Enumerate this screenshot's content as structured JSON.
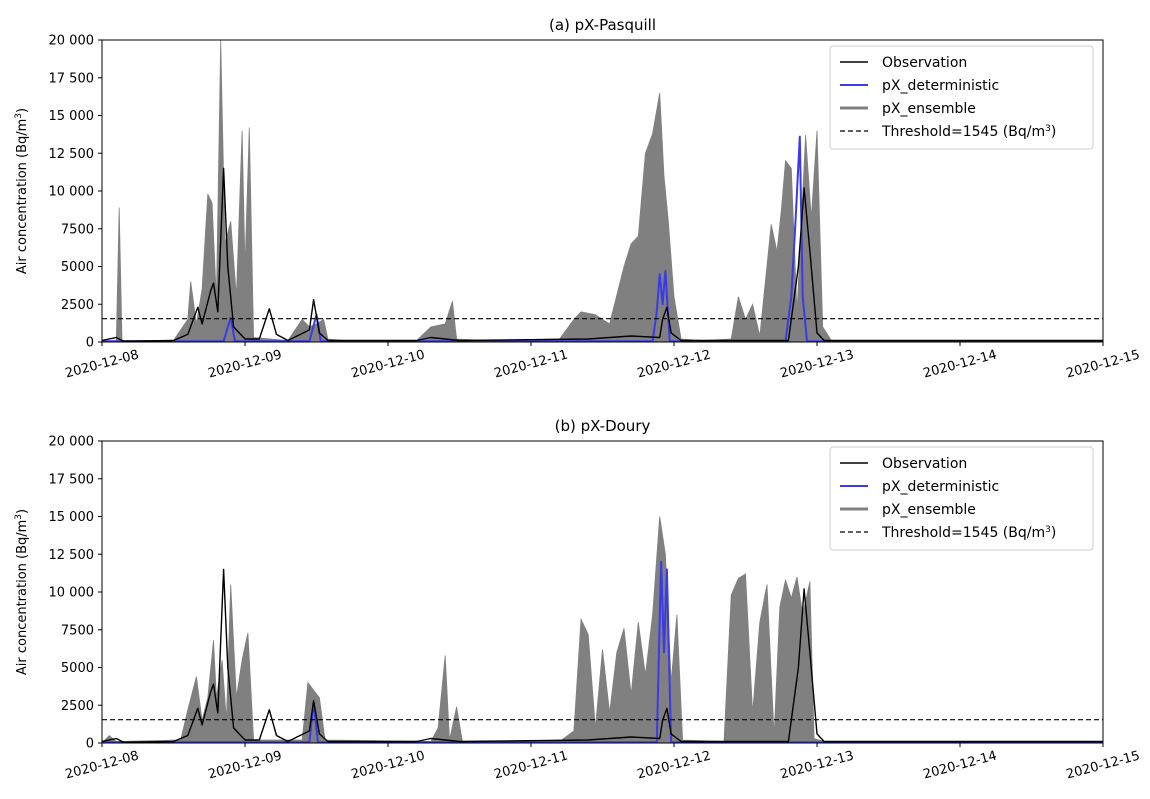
{
  "chart_data": [
    {
      "type": "area",
      "title": "(a) pX-Pasquill",
      "ylabel": "Air concentration (Bq/m³)",
      "xlim": [
        "2020-12-08",
        "2020-12-15"
      ],
      "ylim": [
        0,
        20000
      ],
      "x_ticks": [
        "2020-12-08",
        "2020-12-09",
        "2020-12-10",
        "2020-12-11",
        "2020-12-12",
        "2020-12-13",
        "2020-12-14",
        "2020-12-15"
      ],
      "y_ticks": [
        0,
        2500,
        5000,
        7500,
        10000,
        12500,
        15000,
        17500,
        20000
      ],
      "y_tick_labels": [
        "0",
        "2500",
        "5000",
        "7500",
        "10 000",
        "12 500",
        "15 000",
        "17 500",
        "20 000"
      ],
      "grid": false,
      "legend": "top-right",
      "threshold": {
        "name": "Threshold=1545 (Bq/m³)",
        "value": 1545,
        "color": "#000000",
        "style": "dashed"
      },
      "series": [
        {
          "name": "pX_ensemble",
          "color": "#808080",
          "style": "fill",
          "points": [
            [
              0,
              0
            ],
            [
              0.1,
              100
            ],
            [
              0.12,
              8900
            ],
            [
              0.14,
              100
            ],
            [
              0.5,
              100
            ],
            [
              0.6,
              1500
            ],
            [
              0.62,
              4000
            ],
            [
              0.66,
              1200
            ],
            [
              0.7,
              3500
            ],
            [
              0.74,
              9800
            ],
            [
              0.77,
              9200
            ],
            [
              0.8,
              2800
            ],
            [
              0.83,
              20000
            ],
            [
              0.86,
              6500
            ],
            [
              0.9,
              8000
            ],
            [
              0.94,
              3000
            ],
            [
              0.98,
              14000
            ],
            [
              1.0,
              5000
            ],
            [
              1.03,
              14200
            ],
            [
              1.06,
              300
            ],
            [
              1.3,
              100
            ],
            [
              1.4,
              1500
            ],
            [
              1.45,
              1000
            ],
            [
              1.5,
              1200
            ],
            [
              1.55,
              1500
            ],
            [
              1.58,
              200
            ],
            [
              1.7,
              100
            ],
            [
              2.2,
              100
            ],
            [
              2.3,
              1000
            ],
            [
              2.35,
              1100
            ],
            [
              2.4,
              1200
            ],
            [
              2.45,
              2700
            ],
            [
              2.48,
              200
            ],
            [
              2.7,
              100
            ],
            [
              3.2,
              200
            ],
            [
              3.3,
              1500
            ],
            [
              3.35,
              2000
            ],
            [
              3.45,
              1800
            ],
            [
              3.55,
              1200
            ],
            [
              3.65,
              5000
            ],
            [
              3.7,
              6500
            ],
            [
              3.75,
              7000
            ],
            [
              3.8,
              12500
            ],
            [
              3.85,
              13800
            ],
            [
              3.9,
              16500
            ],
            [
              3.93,
              11000
            ],
            [
              3.96,
              8000
            ],
            [
              4.0,
              3000
            ],
            [
              4.05,
              200
            ],
            [
              4.2,
              100
            ],
            [
              4.4,
              200
            ],
            [
              4.45,
              3000
            ],
            [
              4.5,
              1500
            ],
            [
              4.55,
              2500
            ],
            [
              4.6,
              400
            ],
            [
              4.68,
              7800
            ],
            [
              4.72,
              6000
            ],
            [
              4.75,
              8700
            ],
            [
              4.78,
              12000
            ],
            [
              4.82,
              11500
            ],
            [
              4.86,
              2000
            ],
            [
              4.92,
              13700
            ],
            [
              4.96,
              8200
            ],
            [
              5.0,
              14000
            ],
            [
              5.04,
              1000
            ],
            [
              5.1,
              100
            ],
            [
              7.0,
              100
            ]
          ]
        },
        {
          "name": "pX_deterministic",
          "color": "#3a3ae8",
          "style": "line",
          "points": [
            [
              0,
              50
            ],
            [
              0.85,
              50
            ],
            [
              0.9,
              1600
            ],
            [
              0.93,
              50
            ],
            [
              1.45,
              50
            ],
            [
              1.5,
              1800
            ],
            [
              1.53,
              50
            ],
            [
              3.85,
              50
            ],
            [
              3.88,
              2000
            ],
            [
              3.9,
              4500
            ],
            [
              3.92,
              2500
            ],
            [
              3.94,
              4700
            ],
            [
              3.97,
              50
            ],
            [
              4.78,
              50
            ],
            [
              4.82,
              3000
            ],
            [
              4.85,
              8000
            ],
            [
              4.88,
              13600
            ],
            [
              4.9,
              3000
            ],
            [
              4.93,
              50
            ],
            [
              7.0,
              50
            ]
          ]
        },
        {
          "name": "Observation",
          "color": "#000000",
          "style": "line",
          "points": [
            [
              0,
              100
            ],
            [
              0.1,
              300
            ],
            [
              0.15,
              50
            ],
            [
              0.5,
              100
            ],
            [
              0.6,
              500
            ],
            [
              0.67,
              2300
            ],
            [
              0.7,
              1200
            ],
            [
              0.76,
              3400
            ],
            [
              0.78,
              3900
            ],
            [
              0.81,
              2000
            ],
            [
              0.85,
              11500
            ],
            [
              0.88,
              5000
            ],
            [
              0.92,
              1000
            ],
            [
              1.0,
              200
            ],
            [
              1.1,
              200
            ],
            [
              1.17,
              2200
            ],
            [
              1.22,
              500
            ],
            [
              1.3,
              100
            ],
            [
              1.45,
              800
            ],
            [
              1.48,
              2800
            ],
            [
              1.52,
              600
            ],
            [
              1.58,
              100
            ],
            [
              2.2,
              100
            ],
            [
              2.3,
              300
            ],
            [
              2.5,
              100
            ],
            [
              3.4,
              200
            ],
            [
              3.7,
              400
            ],
            [
              3.9,
              300
            ],
            [
              3.92,
              1500
            ],
            [
              3.95,
              2300
            ],
            [
              3.98,
              600
            ],
            [
              4.05,
              100
            ],
            [
              4.8,
              100
            ],
            [
              4.87,
              5000
            ],
            [
              4.91,
              10200
            ],
            [
              4.95,
              6000
            ],
            [
              5.0,
              600
            ],
            [
              5.05,
              100
            ],
            [
              7.0,
              100
            ]
          ]
        }
      ]
    },
    {
      "type": "area",
      "title": "(b) pX-Doury",
      "ylabel": "Air concentration (Bq/m³)",
      "xlim": [
        "2020-12-08",
        "2020-12-15"
      ],
      "ylim": [
        0,
        20000
      ],
      "x_ticks": [
        "2020-12-08",
        "2020-12-09",
        "2020-12-10",
        "2020-12-11",
        "2020-12-12",
        "2020-12-13",
        "2020-12-14",
        "2020-12-15"
      ],
      "y_ticks": [
        0,
        2500,
        5000,
        7500,
        10000,
        12500,
        15000,
        17500,
        20000
      ],
      "y_tick_labels": [
        "0",
        "2500",
        "5000",
        "7500",
        "10 000",
        "12 500",
        "15 000",
        "17 500",
        "20 000"
      ],
      "grid": false,
      "legend": "top-right",
      "threshold": {
        "name": "Threshold=1545 (Bq/m³)",
        "value": 1545,
        "color": "#000000",
        "style": "dashed"
      },
      "series": [
        {
          "name": "pX_ensemble",
          "color": "#808080",
          "style": "fill",
          "points": [
            [
              0,
              0
            ],
            [
              0.05,
              500
            ],
            [
              0.1,
              100
            ],
            [
              0.55,
              200
            ],
            [
              0.6,
              2200
            ],
            [
              0.66,
              4400
            ],
            [
              0.7,
              1500
            ],
            [
              0.74,
              3000
            ],
            [
              0.78,
              6800
            ],
            [
              0.8,
              3000
            ],
            [
              0.84,
              5500
            ],
            [
              0.87,
              1500
            ],
            [
              0.9,
              10500
            ],
            [
              0.94,
              3000
            ],
            [
              0.98,
              5500
            ],
            [
              1.02,
              7300
            ],
            [
              1.06,
              200
            ],
            [
              1.4,
              200
            ],
            [
              1.44,
              4000
            ],
            [
              1.48,
              3500
            ],
            [
              1.52,
              3000
            ],
            [
              1.56,
              200
            ],
            [
              2.3,
              100
            ],
            [
              2.35,
              1000
            ],
            [
              2.4,
              5800
            ],
            [
              2.43,
              200
            ],
            [
              2.48,
              2400
            ],
            [
              2.52,
              100
            ],
            [
              3.2,
              100
            ],
            [
              3.3,
              800
            ],
            [
              3.35,
              8200
            ],
            [
              3.4,
              7200
            ],
            [
              3.45,
              1000
            ],
            [
              3.5,
              6200
            ],
            [
              3.55,
              2000
            ],
            [
              3.6,
              6000
            ],
            [
              3.65,
              7600
            ],
            [
              3.7,
              3200
            ],
            [
              3.75,
              8000
            ],
            [
              3.8,
              4500
            ],
            [
              3.85,
              8500
            ],
            [
              3.9,
              15000
            ],
            [
              3.94,
              12500
            ],
            [
              3.98,
              4000
            ],
            [
              4.02,
              8500
            ],
            [
              4.06,
              200
            ],
            [
              4.35,
              100
            ],
            [
              4.4,
              9800
            ],
            [
              4.45,
              10900
            ],
            [
              4.5,
              11200
            ],
            [
              4.55,
              2000
            ],
            [
              4.6,
              8000
            ],
            [
              4.65,
              10500
            ],
            [
              4.7,
              500
            ],
            [
              4.74,
              9000
            ],
            [
              4.78,
              10800
            ],
            [
              4.82,
              9600
            ],
            [
              4.86,
              11000
            ],
            [
              4.9,
              8500
            ],
            [
              4.95,
              10700
            ],
            [
              4.98,
              300
            ],
            [
              5.05,
              100
            ],
            [
              7.0,
              100
            ]
          ]
        },
        {
          "name": "pX_deterministic",
          "color": "#3a3ae8",
          "style": "line",
          "points": [
            [
              0,
              50
            ],
            [
              1.45,
              50
            ],
            [
              1.48,
              2700
            ],
            [
              1.51,
              50
            ],
            [
              3.88,
              50
            ],
            [
              3.91,
              12000
            ],
            [
              3.93,
              6000
            ],
            [
              3.95,
              11500
            ],
            [
              3.98,
              50
            ],
            [
              7.0,
              50
            ]
          ]
        },
        {
          "name": "Observation",
          "color": "#000000",
          "style": "line",
          "points": [
            [
              0,
              100
            ],
            [
              0.1,
              300
            ],
            [
              0.15,
              50
            ],
            [
              0.5,
              100
            ],
            [
              0.6,
              500
            ],
            [
              0.67,
              2300
            ],
            [
              0.7,
              1200
            ],
            [
              0.76,
              3400
            ],
            [
              0.78,
              3900
            ],
            [
              0.81,
              2000
            ],
            [
              0.85,
              11500
            ],
            [
              0.88,
              5000
            ],
            [
              0.92,
              1000
            ],
            [
              1.0,
              200
            ],
            [
              1.1,
              200
            ],
            [
              1.17,
              2200
            ],
            [
              1.22,
              500
            ],
            [
              1.3,
              100
            ],
            [
              1.45,
              800
            ],
            [
              1.48,
              2800
            ],
            [
              1.52,
              600
            ],
            [
              1.58,
              100
            ],
            [
              2.2,
              100
            ],
            [
              2.3,
              300
            ],
            [
              2.5,
              100
            ],
            [
              3.4,
              200
            ],
            [
              3.7,
              400
            ],
            [
              3.9,
              300
            ],
            [
              3.92,
              1500
            ],
            [
              3.95,
              2300
            ],
            [
              3.98,
              600
            ],
            [
              4.05,
              100
            ],
            [
              4.8,
              100
            ],
            [
              4.87,
              5000
            ],
            [
              4.91,
              10200
            ],
            [
              4.95,
              6000
            ],
            [
              5.0,
              600
            ],
            [
              5.05,
              100
            ],
            [
              7.0,
              100
            ]
          ]
        }
      ]
    }
  ]
}
